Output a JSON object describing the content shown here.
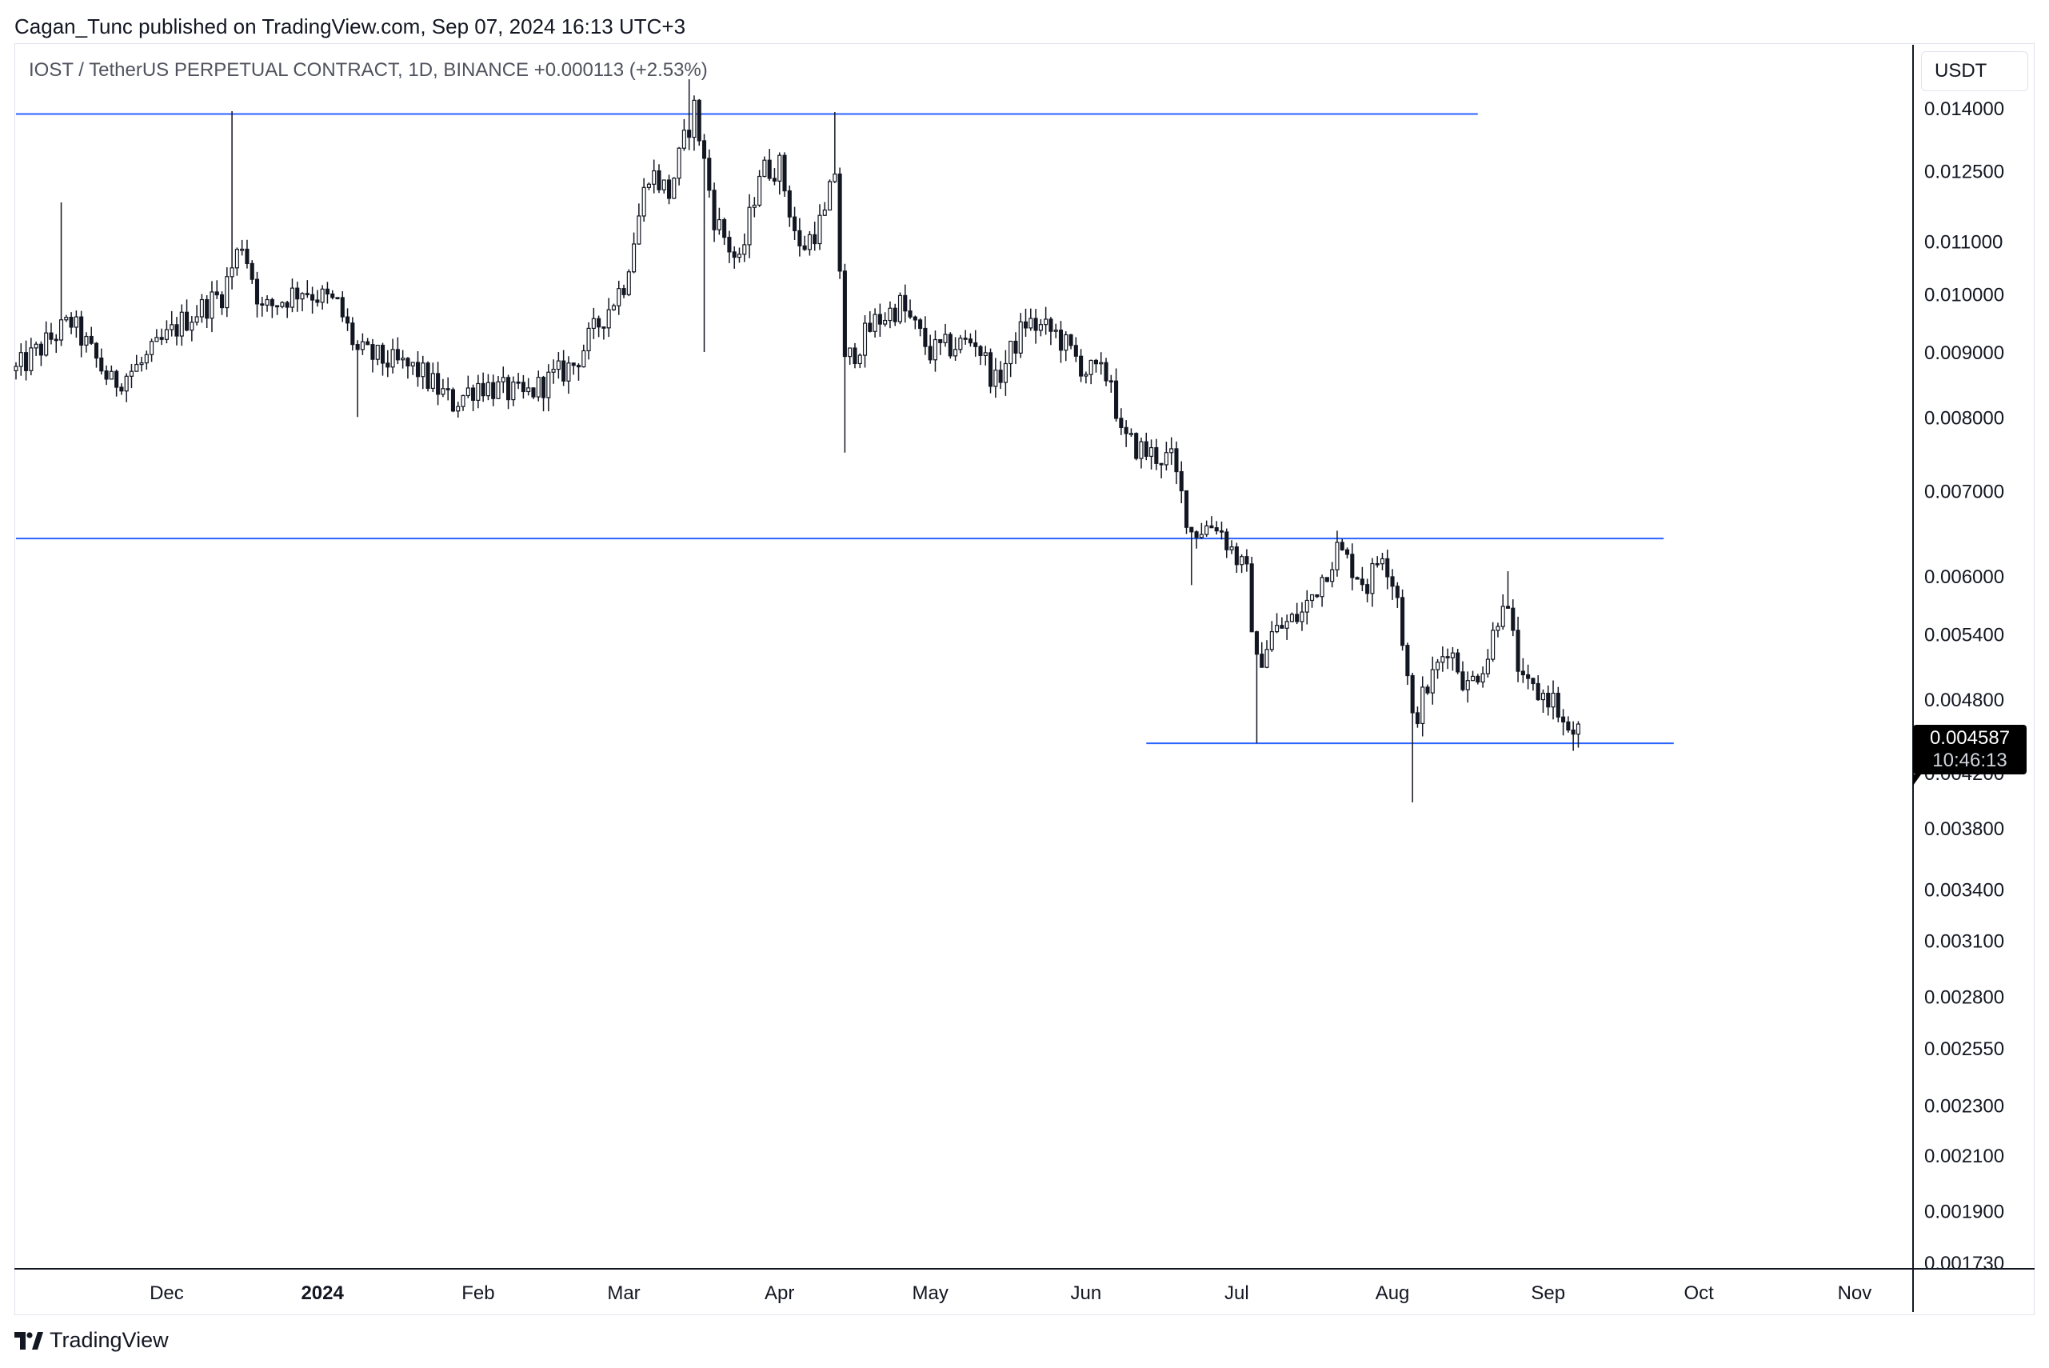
{
  "header": {
    "publisher": "Cagan_Tunc published on TradingView.com, Sep 07, 2024 16:13 UTC+3"
  },
  "symbol_info": "IOST / TetherUS PERPETUAL CONTRACT, 1D, BINANCE  +0.000113 (+2.53%)",
  "unit_label": "USDT",
  "last_price": {
    "value": "0.004587",
    "countdown": "10:46:13"
  },
  "footer": {
    "logo_text": "TradingView"
  },
  "colors": {
    "candle": "#131722",
    "candle_up_fill": "#ffffff",
    "level_line": "#2962ff",
    "axis_text": "#131722",
    "axis_line": "#131722"
  },
  "chart_data": {
    "type": "candlestick",
    "scale": "log",
    "timeframe": "1D",
    "x_ticks": [
      {
        "label": "Dec",
        "date": "2023-12-01",
        "bold": false
      },
      {
        "label": "2024",
        "date": "2024-01-01",
        "bold": true
      },
      {
        "label": "Feb",
        "date": "2024-02-01",
        "bold": false
      },
      {
        "label": "Mar",
        "date": "2024-03-01",
        "bold": false
      },
      {
        "label": "Apr",
        "date": "2024-04-01",
        "bold": false
      },
      {
        "label": "May",
        "date": "2024-05-01",
        "bold": false
      },
      {
        "label": "Jun",
        "date": "2024-06-01",
        "bold": false
      },
      {
        "label": "Jul",
        "date": "2024-07-01",
        "bold": false
      },
      {
        "label": "Aug",
        "date": "2024-08-01",
        "bold": false
      },
      {
        "label": "Sep",
        "date": "2024-09-01",
        "bold": false
      },
      {
        "label": "Oct",
        "date": "2024-10-01",
        "bold": false
      },
      {
        "label": "Nov",
        "date": "2024-11-01",
        "bold": false
      }
    ],
    "y_ticks": [
      "0.014000",
      "0.012500",
      "0.011000",
      "0.010000",
      "0.009000",
      "0.008000",
      "0.007000",
      "0.006000",
      "0.005400",
      "0.004800",
      "0.004200",
      "0.003800",
      "0.003400",
      "0.003100",
      "0.002800",
      "0.002550",
      "0.002300",
      "0.002100",
      "0.001900",
      "0.001730"
    ],
    "x_range": [
      "2023-11-01",
      "2024-11-12"
    ],
    "y_range": [
      0.00171,
      0.0157
    ],
    "levels": [
      {
        "price": 0.01385,
        "from": "2023-11-01",
        "to": "2024-08-18"
      },
      {
        "price": 0.00642,
        "from": "2023-11-01",
        "to": "2024-09-24"
      },
      {
        "price": 0.00443,
        "from": "2024-06-13",
        "to": "2024-09-26"
      }
    ],
    "path_anchors": [
      {
        "date": "2023-11-01",
        "close": 0.0087
      },
      {
        "date": "2023-11-09",
        "close": 0.0093
      },
      {
        "date": "2023-11-12",
        "close": 0.0095
      },
      {
        "date": "2023-11-20",
        "close": 0.0085
      },
      {
        "date": "2023-11-26",
        "close": 0.0088
      },
      {
        "date": "2023-12-04",
        "close": 0.0095
      },
      {
        "date": "2023-12-12",
        "close": 0.01
      },
      {
        "date": "2023-12-16",
        "close": 0.011
      },
      {
        "date": "2023-12-20",
        "close": 0.0097
      },
      {
        "date": "2023-12-28",
        "close": 0.0101
      },
      {
        "date": "2024-01-04",
        "close": 0.0098
      },
      {
        "date": "2024-01-08",
        "close": 0.009
      },
      {
        "date": "2024-01-20",
        "close": 0.0087
      },
      {
        "date": "2024-01-27",
        "close": 0.0082
      },
      {
        "date": "2024-02-01",
        "close": 0.0085
      },
      {
        "date": "2024-02-10",
        "close": 0.0083
      },
      {
        "date": "2024-02-20",
        "close": 0.0088
      },
      {
        "date": "2024-03-01",
        "close": 0.0102
      },
      {
        "date": "2024-03-06",
        "close": 0.0125
      },
      {
        "date": "2024-03-10",
        "close": 0.012
      },
      {
        "date": "2024-03-15",
        "close": 0.014
      },
      {
        "date": "2024-03-19",
        "close": 0.0115
      },
      {
        "date": "2024-03-24",
        "close": 0.0105
      },
      {
        "date": "2024-03-28",
        "close": 0.0125
      },
      {
        "date": "2024-04-01",
        "close": 0.0126
      },
      {
        "date": "2024-04-05",
        "close": 0.0108
      },
      {
        "date": "2024-04-10",
        "close": 0.0115
      },
      {
        "date": "2024-04-12",
        "close": 0.0125
      },
      {
        "date": "2024-04-14",
        "close": 0.0088
      },
      {
        "date": "2024-04-20",
        "close": 0.0095
      },
      {
        "date": "2024-04-25",
        "close": 0.0098
      },
      {
        "date": "2024-05-01",
        "close": 0.009
      },
      {
        "date": "2024-05-10",
        "close": 0.0092
      },
      {
        "date": "2024-05-14",
        "close": 0.0085
      },
      {
        "date": "2024-05-20",
        "close": 0.0095
      },
      {
        "date": "2024-05-26",
        "close": 0.0093
      },
      {
        "date": "2024-06-01",
        "close": 0.0087
      },
      {
        "date": "2024-06-06",
        "close": 0.0086
      },
      {
        "date": "2024-06-08",
        "close": 0.0077
      },
      {
        "date": "2024-06-13",
        "close": 0.0075
      },
      {
        "date": "2024-06-18",
        "close": 0.0074
      },
      {
        "date": "2024-06-22",
        "close": 0.0065
      },
      {
        "date": "2024-06-27",
        "close": 0.0066
      },
      {
        "date": "2024-07-03",
        "close": 0.006
      },
      {
        "date": "2024-07-05",
        "close": 0.0051
      },
      {
        "date": "2024-07-08",
        "close": 0.0054
      },
      {
        "date": "2024-07-14",
        "close": 0.0056
      },
      {
        "date": "2024-07-21",
        "close": 0.0063
      },
      {
        "date": "2024-07-24",
        "close": 0.0061
      },
      {
        "date": "2024-07-27",
        "close": 0.0059
      },
      {
        "date": "2024-07-30",
        "close": 0.0063
      },
      {
        "date": "2024-08-02",
        "close": 0.0058
      },
      {
        "date": "2024-08-05",
        "close": 0.0046
      },
      {
        "date": "2024-08-07",
        "close": 0.0048
      },
      {
        "date": "2024-08-12",
        "close": 0.0053
      },
      {
        "date": "2024-08-16",
        "close": 0.0049
      },
      {
        "date": "2024-08-20",
        "close": 0.0052
      },
      {
        "date": "2024-08-23",
        "close": 0.0058
      },
      {
        "date": "2024-08-27",
        "close": 0.0049
      },
      {
        "date": "2024-09-02",
        "close": 0.0048
      },
      {
        "date": "2024-09-05",
        "close": 0.00447
      },
      {
        "date": "2024-09-07",
        "close": 0.004587
      }
    ],
    "wick_events": [
      {
        "date": "2023-11-10",
        "high": 0.0118
      },
      {
        "date": "2023-12-14",
        "high": 0.01392
      },
      {
        "date": "2024-01-08",
        "low": 0.008
      },
      {
        "date": "2024-03-14",
        "high": 0.01475
      },
      {
        "date": "2024-03-17",
        "low": 0.009
      },
      {
        "date": "2024-04-12",
        "high": 0.0139
      },
      {
        "date": "2024-04-14",
        "low": 0.0075
      },
      {
        "date": "2024-06-22",
        "low": 0.0059
      },
      {
        "date": "2024-07-05",
        "low": 0.00443
      },
      {
        "date": "2024-08-05",
        "low": 0.00398
      },
      {
        "date": "2024-08-24",
        "high": 0.00605
      },
      {
        "date": "2024-09-06",
        "low": 0.00437
      }
    ]
  }
}
